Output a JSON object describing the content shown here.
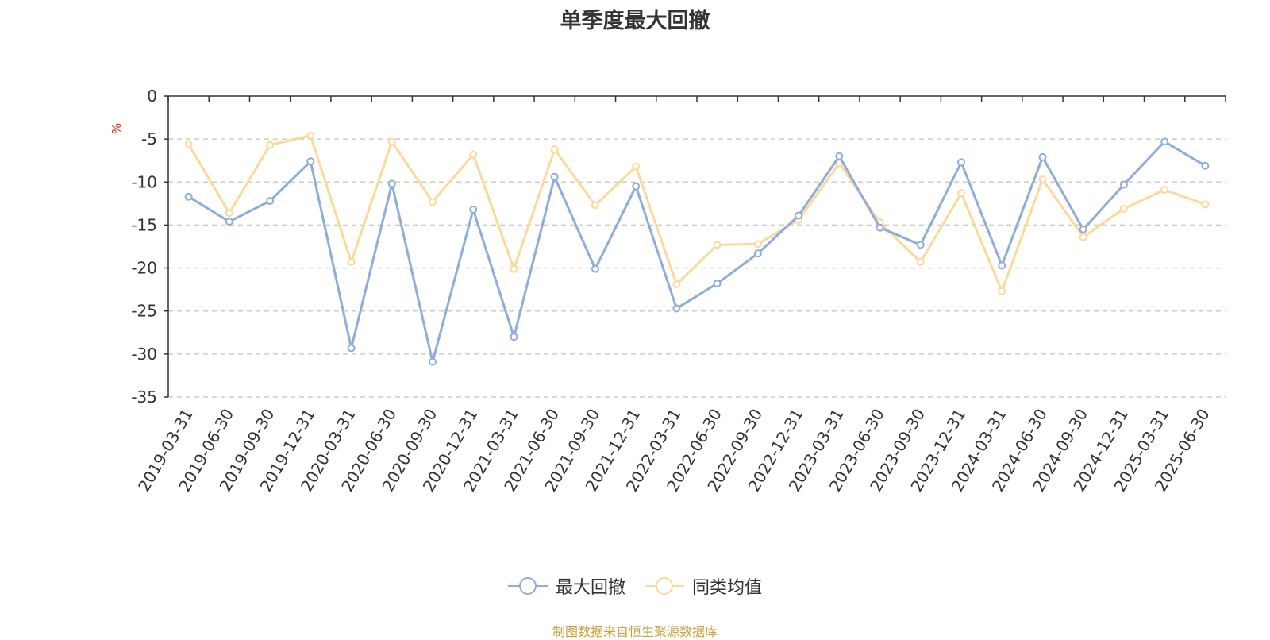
{
  "chart_data": {
    "type": "line",
    "title": "单季度最大回撤",
    "ylabel": "%",
    "ylim": [
      -35,
      0
    ],
    "yticks": [
      0,
      -5,
      -10,
      -15,
      -20,
      -25,
      -30,
      -35
    ],
    "grid": true,
    "legend_position": "bottom",
    "x": [
      "2019-03-31",
      "2019-06-30",
      "2019-09-30",
      "2019-12-31",
      "2020-03-31",
      "2020-06-30",
      "2020-09-30",
      "2020-12-31",
      "2021-03-31",
      "2021-06-30",
      "2021-09-30",
      "2021-12-31",
      "2022-03-31",
      "2022-06-30",
      "2022-09-30",
      "2022-12-31",
      "2023-03-31",
      "2023-06-30",
      "2023-09-30",
      "2023-12-31",
      "2024-03-31",
      "2024-06-30",
      "2024-09-30",
      "2024-12-31",
      "2025-03-31",
      "2025-06-30"
    ],
    "series": [
      {
        "name": "最大回撤",
        "color": "#8eadd8",
        "values": [
          -11.7,
          -14.6,
          -12.2,
          -7.6,
          -29.3,
          -10.2,
          -30.9,
          -13.2,
          -28.0,
          -9.4,
          -20.1,
          -10.5,
          -24.7,
          -21.8,
          -18.3,
          -13.9,
          -7.0,
          -15.3,
          -17.3,
          -7.7,
          -19.7,
          -7.1,
          -15.5,
          -10.3,
          -5.3,
          -8.1
        ]
      },
      {
        "name": "同类均值",
        "color": "#fbd99a",
        "values": [
          -5.6,
          -13.6,
          -5.7,
          -4.6,
          -19.3,
          -5.3,
          -12.3,
          -6.8,
          -20.1,
          -6.2,
          -12.7,
          -8.2,
          -21.9,
          -17.3,
          -17.2,
          -14.4,
          -7.8,
          -14.7,
          -19.3,
          -11.3,
          -22.7,
          -9.7,
          -16.4,
          -13.1,
          -10.9,
          -12.6
        ]
      }
    ]
  },
  "source_text": "制图数据来自恒生聚源数据库"
}
